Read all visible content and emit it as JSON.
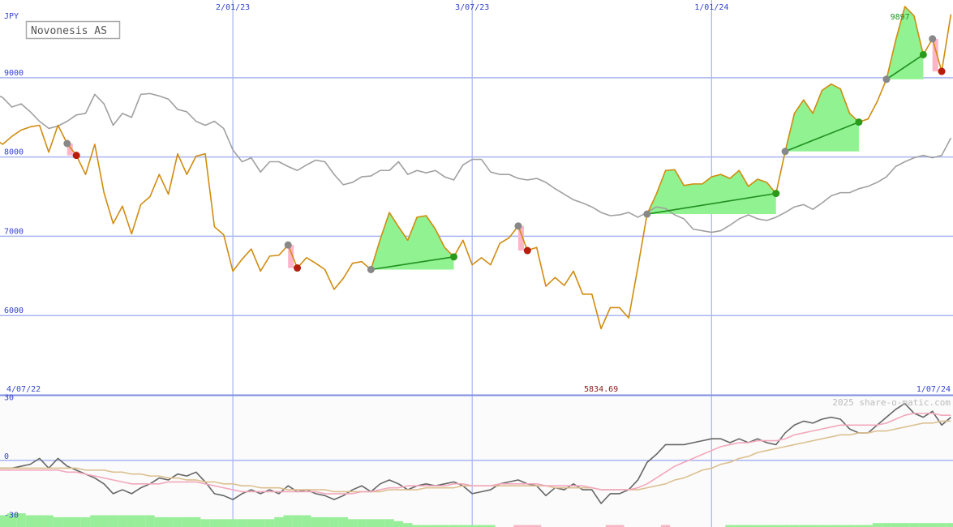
{
  "chart_data": [
    {
      "type": "line",
      "title": "Novonesis AS",
      "y_label": "JPY",
      "categories": [
        "4/07/22",
        null,
        null,
        null,
        null,
        null,
        null,
        null,
        null,
        null,
        null,
        null,
        null,
        null,
        null,
        null,
        null,
        null,
        null,
        null,
        null,
        null,
        null,
        null,
        null,
        null,
        "2/01/23",
        null,
        null,
        null,
        null,
        null,
        null,
        null,
        null,
        null,
        null,
        null,
        null,
        null,
        null,
        null,
        null,
        null,
        null,
        null,
        null,
        null,
        null,
        null,
        null,
        null,
        "3/07/23",
        null,
        null,
        null,
        null,
        null,
        null,
        null,
        null,
        null,
        null,
        null,
        null,
        null,
        null,
        null,
        null,
        null,
        null,
        null,
        null,
        null,
        null,
        null,
        null,
        null,
        "1/01/24",
        null,
        null,
        null,
        null,
        null,
        null,
        null,
        null,
        null,
        null,
        null,
        null,
        null,
        null,
        null,
        null,
        null,
        null,
        null,
        null,
        null,
        null,
        null,
        null,
        null,
        "1/07/24"
      ],
      "ylim": [
        5000,
        9980
      ],
      "yticks": [
        6000,
        7000,
        8000,
        9000
      ],
      "grid": true,
      "series": [
        {
          "color": "#d08c10",
          "values": [
            8240,
            8160,
            8260,
            8340,
            8380,
            8400,
            8060,
            8400,
            8170,
            8020,
            7780,
            8160,
            7550,
            7160,
            7380,
            7030,
            7400,
            7500,
            7780,
            7530,
            8040,
            7780,
            8010,
            8040,
            7120,
            7020,
            6560,
            6710,
            6840,
            6560,
            6750,
            6760,
            6890,
            6600,
            6730,
            6660,
            6580,
            6330,
            6470,
            6660,
            6680,
            6580,
            6960,
            7300,
            7120,
            6950,
            7240,
            7260,
            7090,
            6860,
            6740,
            6950,
            6640,
            6730,
            6640,
            6910,
            6980,
            7130,
            6820,
            6860,
            6370,
            6480,
            6380,
            6560,
            6270,
            6270,
            5834.69,
            6100,
            6100,
            5970,
            6610,
            7280,
            7530,
            7830,
            7840,
            7640,
            7660,
            7660,
            7750,
            7780,
            7730,
            7830,
            7630,
            7720,
            7680,
            7540,
            8070,
            8550,
            8720,
            8550,
            8840,
            8920,
            8860,
            8550,
            8440,
            8480,
            8700,
            8980,
            9470,
            9897,
            9780,
            9290,
            9490,
            9080,
            9800
          ]
        },
        {
          "color": "#a0a0a0",
          "values": [
            8800,
            8750,
            8630,
            8670,
            8570,
            8450,
            8360,
            8390,
            8450,
            8530,
            8550,
            8790,
            8670,
            8400,
            8550,
            8500,
            8790,
            8800,
            8770,
            8730,
            8600,
            8570,
            8450,
            8400,
            8450,
            8360,
            8090,
            7940,
            7990,
            7810,
            7940,
            7940,
            7880,
            7830,
            7900,
            7960,
            7940,
            7780,
            7650,
            7680,
            7750,
            7760,
            7830,
            7830,
            7940,
            7780,
            7830,
            7800,
            7830,
            7750,
            7710,
            7900,
            7970,
            7970,
            7810,
            7780,
            7780,
            7730,
            7710,
            7730,
            7680,
            7600,
            7530,
            7460,
            7420,
            7370,
            7300,
            7260,
            7270,
            7300,
            7240,
            7300,
            7370,
            7350,
            7270,
            7220,
            7090,
            7070,
            7050,
            7070,
            7140,
            7220,
            7270,
            7220,
            7200,
            7240,
            7300,
            7370,
            7400,
            7340,
            7420,
            7510,
            7550,
            7550,
            7600,
            7630,
            7680,
            7750,
            7880,
            7940,
            7990,
            8020,
            7990,
            8020,
            8240
          ]
        }
      ],
      "signals": [
        {
          "from": 8,
          "to": 9,
          "color": "#ffb4c8"
        },
        {
          "from": 32,
          "to": 33,
          "color": "#ffb4c8"
        },
        {
          "from": 41,
          "to": 50,
          "color": "#90f290"
        },
        {
          "from": 57,
          "to": 58,
          "color": "#ffb4c8"
        },
        {
          "from": 71,
          "to": 85,
          "color": "#90f290"
        },
        {
          "from": 86,
          "to": 94,
          "color": "#90f290"
        },
        {
          "from": 97,
          "to": 101,
          "color": "#90f290"
        },
        {
          "from": 102,
          "to": 103,
          "color": "#ffb4c8"
        }
      ]
    },
    {
      "type": "line",
      "watermark": "2025 share-o-matic.com",
      "ylim": [
        -34,
        33
      ],
      "yticks": [
        -30,
        0,
        30
      ],
      "zero_line": true,
      "series": [
        {
          "color": "#f2a8bc",
          "values": [
            -5,
            -5,
            -5,
            -5,
            -5,
            -5,
            -5,
            -5,
            -6,
            -6,
            -7,
            -8,
            -9,
            -10,
            -11,
            -12,
            -12,
            -12,
            -12,
            -11,
            -11,
            -11,
            -11,
            -12,
            -13,
            -14,
            -15,
            -16,
            -16,
            -16,
            -16,
            -16,
            -16,
            -16,
            -16,
            -16,
            -17,
            -17,
            -17,
            -17,
            -16,
            -16,
            -15,
            -14,
            -14,
            -13,
            -13,
            -13,
            -13,
            -13,
            -12,
            -12,
            -13,
            -13,
            -13,
            -12,
            -12,
            -12,
            -12,
            -12,
            -13,
            -13,
            -13,
            -13,
            -13,
            -14,
            -15,
            -15,
            -15,
            -15,
            -14,
            -12,
            -9,
            -6,
            -3,
            -1,
            1,
            3,
            5,
            7,
            8,
            9,
            9,
            10,
            10,
            10,
            11,
            13,
            14,
            15,
            16,
            17,
            18,
            18,
            18,
            18,
            18,
            19,
            21,
            23,
            24,
            24,
            24,
            23,
            23
          ]
        },
        {
          "color": "#dcc090",
          "values": [
            -4,
            -4,
            -4,
            -4,
            -4,
            -4,
            -4,
            -4,
            -4,
            -4,
            -5,
            -5,
            -5,
            -6,
            -6,
            -7,
            -7,
            -8,
            -8,
            -9,
            -9,
            -10,
            -10,
            -11,
            -11,
            -12,
            -12,
            -13,
            -13,
            -14,
            -14,
            -14,
            -15,
            -15,
            -15,
            -15,
            -15,
            -16,
            -16,
            -16,
            -16,
            -16,
            -16,
            -15,
            -15,
            -15,
            -15,
            -14,
            -14,
            -14,
            -14,
            -13,
            -13,
            -13,
            -13,
            -13,
            -13,
            -13,
            -13,
            -13,
            -13,
            -14,
            -14,
            -14,
            -14,
            -14,
            -15,
            -15,
            -15,
            -15,
            -15,
            -14,
            -13,
            -12,
            -10,
            -9,
            -7,
            -5,
            -4,
            -2,
            -1,
            1,
            2,
            4,
            5,
            6,
            7,
            8,
            9,
            10,
            11,
            12,
            13,
            13,
            14,
            14,
            15,
            15,
            16,
            17,
            18,
            19,
            19,
            20,
            20
          ]
        },
        {
          "color": "#666666",
          "values": [
            -4,
            -4,
            -4,
            -3,
            -2,
            1,
            -4,
            1,
            -3,
            -5,
            -7,
            -9,
            -12,
            -17,
            -15,
            -17,
            -14,
            -12,
            -9,
            -10,
            -7,
            -8,
            -6,
            -11,
            -17,
            -18,
            -20,
            -17,
            -15,
            -17,
            -15,
            -17,
            -13,
            -16,
            -15,
            -17,
            -18,
            -20,
            -18,
            -15,
            -13,
            -16,
            -12,
            -10,
            -12,
            -15,
            -13,
            -12,
            -13,
            -12,
            -11,
            -13,
            -17,
            -16,
            -15,
            -12,
            -11,
            -10,
            -12,
            -13,
            -18,
            -14,
            -15,
            -12,
            -15,
            -15,
            -22,
            -17,
            -17,
            -15,
            -10,
            -1,
            3,
            8,
            8,
            8,
            9,
            10,
            11,
            11,
            9,
            11,
            9,
            11,
            9,
            8,
            14,
            18,
            20,
            19,
            21,
            22,
            21,
            16,
            14,
            14,
            18,
            22,
            26,
            29,
            24,
            22,
            25,
            18,
            22
          ]
        }
      ],
      "bars": {
        "up_color": "#99ee99",
        "down_color": "#f6b4c4",
        "values": [
          6,
          6,
          7,
          7,
          6,
          6,
          6,
          5,
          5,
          5,
          5,
          6,
          6,
          6,
          6,
          6,
          6,
          6,
          5,
          5,
          5,
          5,
          5,
          4,
          4,
          4,
          4,
          4,
          4,
          4,
          4,
          5,
          6,
          6,
          6,
          5,
          5,
          5,
          5,
          4,
          4,
          4,
          4,
          4,
          3,
          2,
          1,
          1,
          1,
          1,
          1,
          1,
          1,
          1,
          1,
          0,
          0,
          -1,
          -1,
          -1,
          0,
          0,
          0,
          0,
          0,
          0,
          0,
          -1,
          -1,
          0,
          0,
          0,
          0,
          -1,
          0,
          0,
          0,
          0,
          0,
          0,
          1,
          1,
          1,
          1,
          1,
          1,
          1,
          1,
          1,
          1,
          1,
          1,
          1,
          1,
          1,
          1,
          2,
          2,
          2,
          2,
          2,
          2,
          2,
          2,
          2
        ]
      }
    }
  ]
}
